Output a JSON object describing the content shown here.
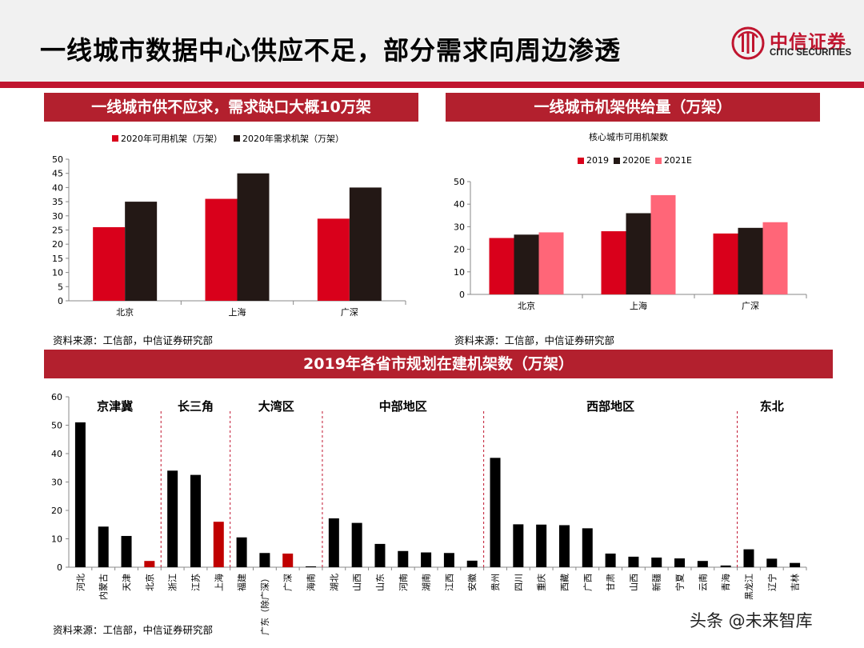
{
  "page": {
    "title": "一线城市数据中心供应不足，部分需求向周边渗透"
  },
  "logo": {
    "name": "中信证券",
    "english": "CITIC SECURITIES",
    "icon": "citic-logo-icon",
    "color": "#c0152f"
  },
  "chart1": {
    "banner": "一线城市供不应求，需求缺口大概10万架",
    "source": "资料来源：工信部，中信证券研究部"
  },
  "chart2": {
    "banner": "一线城市机架供给量（万架）",
    "source": "资料来源：工信部，中信证券研究部"
  },
  "chart3": {
    "banner": "2019年各省市规划在建机架数（万架）",
    "source": "资料来源：工信部，中信证券研究部"
  },
  "watermark": {
    "text": "头条 @未来智库"
  },
  "chart_data": [
    {
      "type": "bar",
      "title": "一线城市供不应求，需求缺口大概10万架",
      "categories": [
        "北京",
        "上海",
        "广深"
      ],
      "series": [
        {
          "name": "2020年可用机架（万架）",
          "values": [
            26,
            36,
            29
          ],
          "color": "#d9001b"
        },
        {
          "name": "2020年需求机架（万架）",
          "values": [
            35,
            45,
            40
          ],
          "color": "#231815"
        }
      ],
      "ylim": [
        0,
        50
      ],
      "yticks": [
        0,
        5,
        10,
        15,
        20,
        25,
        30,
        35,
        40,
        45,
        50
      ],
      "legend": "top-left",
      "grid": false
    },
    {
      "type": "bar",
      "title": "一线城市机架供给量（万架）",
      "subtitle": "核心城市可用机架数",
      "categories": [
        "北京",
        "上海",
        "广深"
      ],
      "series": [
        {
          "name": "2019",
          "values": [
            25,
            28,
            27
          ],
          "color": "#d9001b"
        },
        {
          "name": "2020E",
          "values": [
            26.5,
            36,
            29.5
          ],
          "color": "#231815"
        },
        {
          "name": "2021E",
          "values": [
            27.5,
            44,
            32
          ],
          "color": "#ff6678"
        }
      ],
      "ylim": [
        0,
        50
      ],
      "yticks": [
        0,
        10,
        20,
        30,
        40,
        50
      ],
      "legend": "top-left",
      "grid": false
    },
    {
      "type": "bar",
      "title": "2019年各省市规划在建机架数（万架）",
      "categories": [
        "河北",
        "内蒙古",
        "天津",
        "北京",
        "浙江",
        "江苏",
        "上海",
        "福建",
        "广东（除广深）",
        "广深",
        "海南",
        "湖北",
        "山西",
        "山东",
        "河南",
        "湖南",
        "江西",
        "安徽",
        "贵州",
        "四川",
        "重庆",
        "西藏",
        "广西",
        "甘肃",
        "山西",
        "新疆",
        "宁夏",
        "云南",
        "青海",
        "黑龙江",
        "辽宁",
        "吉林"
      ],
      "values": [
        51,
        14.3,
        11,
        2.2,
        34,
        32.5,
        16,
        10.5,
        5,
        4.8,
        0.3,
        17.2,
        15.6,
        8.2,
        5.7,
        5.2,
        5,
        2.3,
        38.5,
        15.1,
        15,
        14.8,
        13.7,
        4.8,
        3.7,
        3.4,
        3.1,
        2.2,
        0.6,
        6.3,
        3,
        1.5
      ],
      "highlight": [
        3,
        6,
        9
      ],
      "colors": {
        "default": "#000000",
        "highlight": "#c00000"
      },
      "regions": [
        {
          "label": "京津冀",
          "start": 0,
          "end": 3
        },
        {
          "label": "长三角",
          "start": 4,
          "end": 6
        },
        {
          "label": "大湾区",
          "start": 7,
          "end": 10
        },
        {
          "label": "中部地区",
          "start": 11,
          "end": 17
        },
        {
          "label": "西部地区",
          "start": 18,
          "end": 28
        },
        {
          "label": "东北",
          "start": 29,
          "end": 31
        }
      ],
      "ylim": [
        0,
        60
      ],
      "yticks": [
        0,
        10,
        20,
        30,
        40,
        50,
        60
      ],
      "grid": false
    }
  ]
}
